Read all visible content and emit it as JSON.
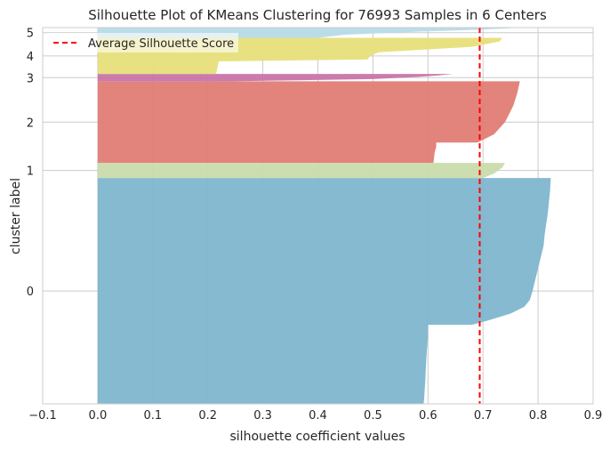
{
  "chart_data": {
    "type": "area",
    "title": "Silhouette Plot of KMeans Clustering for 76993 Samples in 6 Centers",
    "xlabel": "silhouette coefficient values",
    "ylabel": "cluster label",
    "xlim": [
      -0.1,
      0.9
    ],
    "xticks": [
      -0.1,
      0.0,
      0.1,
      0.2,
      0.3,
      0.4,
      0.5,
      0.6,
      0.7,
      0.8,
      0.9
    ],
    "xtick_labels": [
      "−0.1",
      "0.0",
      "0.1",
      "0.2",
      "0.3",
      "0.4",
      "0.5",
      "0.6",
      "0.7",
      "0.8",
      "0.9"
    ],
    "ylim": [
      0,
      76993
    ],
    "ytick_labels": [
      "0",
      "1",
      "2",
      "3",
      "4",
      "5"
    ],
    "grid": true,
    "legend": {
      "position": "top-left",
      "entries": [
        "Average Silhouette Score"
      ]
    },
    "average_silhouette_score": 0.694,
    "clusters": [
      {
        "label": "0",
        "color": "#7eb6cf",
        "start": 0,
        "size": 46200,
        "profile": [
          [
            0,
            0.592
          ],
          [
            0.02,
            0.593
          ],
          [
            0.1,
            0.595
          ],
          [
            0.2,
            0.597
          ],
          [
            0.3,
            0.6
          ],
          [
            0.35,
            0.6
          ],
          [
            0.3501,
            0.68
          ],
          [
            0.37,
            0.71
          ],
          [
            0.4,
            0.75
          ],
          [
            0.43,
            0.775
          ],
          [
            0.46,
            0.785
          ],
          [
            0.5,
            0.79
          ],
          [
            0.55,
            0.795
          ],
          [
            0.6,
            0.8
          ],
          [
            0.65,
            0.805
          ],
          [
            0.7,
            0.81
          ],
          [
            0.75,
            0.812
          ],
          [
            0.8,
            0.815
          ],
          [
            0.85,
            0.818
          ],
          [
            0.9,
            0.82
          ],
          [
            0.95,
            0.822
          ],
          [
            1.0,
            0.823
          ]
        ]
      },
      {
        "label": "1",
        "color": "#c9dcac",
        "start": 46200,
        "size": 3100,
        "profile": [
          [
            0,
            0.7
          ],
          [
            0.3,
            0.72
          ],
          [
            0.7,
            0.735
          ],
          [
            1.0,
            0.74
          ]
        ]
      },
      {
        "label": "2",
        "color": "#e07d75",
        "start": 49300,
        "size": 16700,
        "profile": [
          [
            0,
            0.61
          ],
          [
            0.12,
            0.612
          ],
          [
            0.2,
            0.615
          ],
          [
            0.25,
            0.615
          ],
          [
            0.2501,
            0.69
          ],
          [
            0.35,
            0.72
          ],
          [
            0.5,
            0.74
          ],
          [
            0.7,
            0.755
          ],
          [
            0.85,
            0.762
          ],
          [
            1.0,
            0.767
          ]
        ]
      },
      {
        "label": "3",
        "color": "#c874a8",
        "start": 66000,
        "size": 1500,
        "profile": [
          [
            0,
            0.24
          ],
          [
            0.3,
            0.5
          ],
          [
            0.6,
            0.58
          ],
          [
            0.8,
            0.62
          ],
          [
            1.0,
            0.645
          ]
        ]
      },
      {
        "label": "4",
        "color": "#e6df7a",
        "start": 67500,
        "size": 7400,
        "profile": [
          [
            0,
            0.215
          ],
          [
            0.35,
            0.22
          ],
          [
            0.4,
            0.49
          ],
          [
            0.5,
            0.495
          ],
          [
            0.6,
            0.51
          ],
          [
            0.75,
            0.68
          ],
          [
            0.9,
            0.73
          ],
          [
            1.0,
            0.735
          ]
        ]
      },
      {
        "label": "5",
        "color": "#b7dbe8",
        "start": 74900,
        "size": 2093,
        "profile": [
          [
            0,
            0.4
          ],
          [
            0.3,
            0.45
          ],
          [
            0.6,
            0.58
          ],
          [
            0.8,
            0.7
          ],
          [
            1.0,
            0.77
          ]
        ]
      }
    ]
  }
}
